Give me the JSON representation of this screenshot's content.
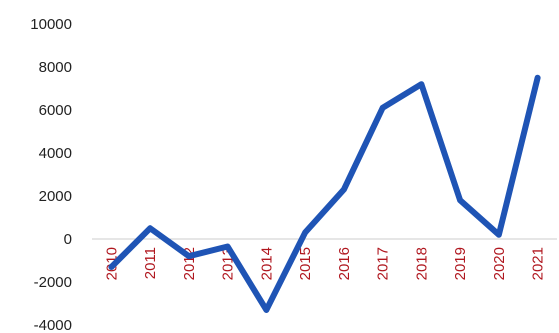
{
  "chart_data": {
    "type": "line",
    "x": [
      "2010",
      "2011",
      "2012",
      "2013",
      "2014",
      "2015",
      "2016",
      "2017",
      "2018",
      "2019",
      "2020",
      "2021"
    ],
    "series": [
      {
        "values": [
          -1300,
          500,
          -800,
          -350,
          -3300,
          300,
          2300,
          6100,
          7200,
          1800,
          200,
          7500
        ]
      }
    ],
    "ylim": [
      -4000,
      10000
    ],
    "yticks": [
      -4000,
      -2000,
      0,
      2000,
      4000,
      6000,
      8000,
      10000
    ],
    "ytick_labels": [
      "-4000",
      "-2000",
      "0",
      "2000",
      "4000",
      "6000",
      "8000",
      "10000"
    ],
    "grid": false,
    "legend": "none",
    "colors": {
      "line": "#1f54b5",
      "x_labels": "#b0171f",
      "y_labels": "#222222",
      "axis": "#cccccc"
    }
  }
}
